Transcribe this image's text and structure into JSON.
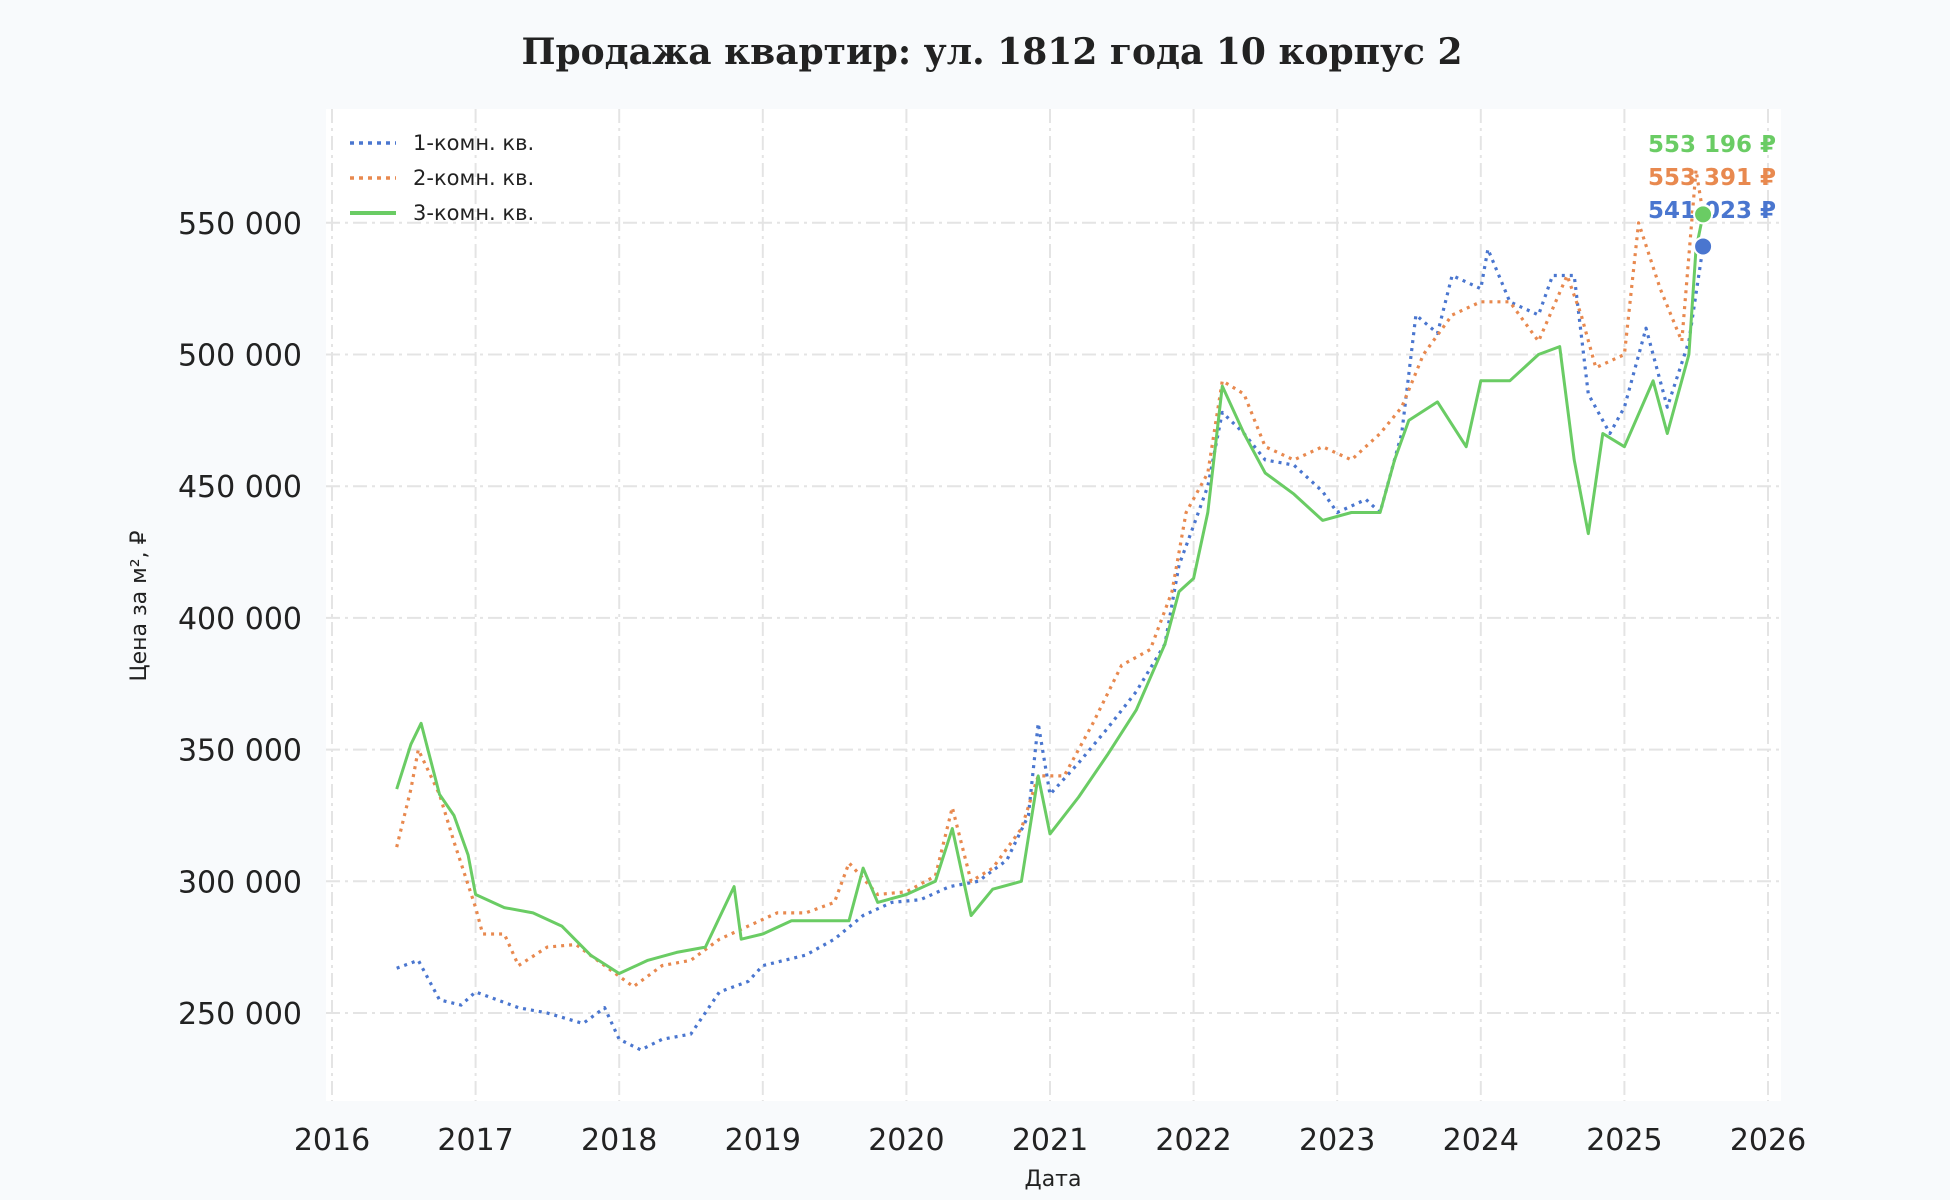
{
  "chart_data": {
    "type": "line",
    "title": "Продажа квартир: ул. 1812 года 10 корпус 2",
    "xlabel": "Дата",
    "ylabel": "Цена за м², ₽",
    "xlim": [
      "2016-01-01",
      "2026-01-01"
    ],
    "ylim": [
      215000,
      590000
    ],
    "x_ticks": [
      "2016",
      "2017",
      "2018",
      "2019",
      "2020",
      "2021",
      "2022",
      "2023",
      "2024",
      "2025",
      "2026"
    ],
    "y_ticks": [
      250000,
      300000,
      350000,
      400000,
      450000,
      500000,
      550000
    ],
    "y_tick_labels": [
      "250 000",
      "300 000",
      "350 000",
      "400 000",
      "450 000",
      "500 000",
      "550 000"
    ],
    "grid": true,
    "legend_position": "top-left",
    "series": [
      {
        "name": "1-комн. кв.",
        "color": "#4a76cf",
        "style": "dotted",
        "end_label": "541 023 ₽",
        "points": [
          [
            "2016-06-14",
            267000
          ],
          [
            "2016-08-08",
            270000
          ],
          [
            "2016-10-01",
            255000
          ],
          [
            "2016-11-25",
            253000
          ],
          [
            "2017-01-01",
            258000
          ],
          [
            "2017-04-20",
            252000
          ],
          [
            "2017-07-02",
            250000
          ],
          [
            "2017-10-01",
            246000
          ],
          [
            "2017-11-25",
            252000
          ],
          [
            "2018-01-01",
            240000
          ],
          [
            "2018-02-25",
            236000
          ],
          [
            "2018-04-20",
            240000
          ],
          [
            "2018-07-02",
            242000
          ],
          [
            "2018-09-13",
            258000
          ],
          [
            "2018-11-25",
            262000
          ],
          [
            "2019-01-01",
            268000
          ],
          [
            "2019-04-20",
            272000
          ],
          [
            "2019-07-02",
            278000
          ],
          [
            "2019-09-13",
            287000
          ],
          [
            "2019-11-25",
            292000
          ],
          [
            "2020-02-06",
            293000
          ],
          [
            "2020-04-20",
            298000
          ],
          [
            "2020-07-02",
            300000
          ],
          [
            "2020-09-13",
            308000
          ],
          [
            "2020-11-07",
            325000
          ],
          [
            "2020-12-02",
            360000
          ],
          [
            "2021-01-01",
            333000
          ],
          [
            "2021-03-15",
            345000
          ],
          [
            "2021-05-27",
            358000
          ],
          [
            "2021-08-08",
            372000
          ],
          [
            "2021-10-20",
            390000
          ],
          [
            "2021-11-25",
            420000
          ],
          [
            "2022-01-01",
            435000
          ],
          [
            "2022-02-06",
            450000
          ],
          [
            "2022-03-15",
            478000
          ],
          [
            "2022-05-09",
            470000
          ],
          [
            "2022-07-02",
            460000
          ],
          [
            "2022-09-13",
            458000
          ],
          [
            "2022-11-25",
            448000
          ],
          [
            "2023-01-01",
            440000
          ],
          [
            "2023-03-15",
            445000
          ],
          [
            "2023-04-20",
            440000
          ],
          [
            "2023-06-14",
            470000
          ],
          [
            "2023-07-20",
            515000
          ],
          [
            "2023-09-13",
            508000
          ],
          [
            "2023-10-20",
            530000
          ],
          [
            "2024-01-01",
            525000
          ],
          [
            "2024-01-19",
            540000
          ],
          [
            "2024-03-15",
            520000
          ],
          [
            "2024-05-27",
            515000
          ],
          [
            "2024-07-02",
            530000
          ],
          [
            "2024-08-26",
            530000
          ],
          [
            "2024-10-01",
            485000
          ],
          [
            "2024-11-25",
            470000
          ],
          [
            "2025-01-01",
            480000
          ],
          [
            "2025-02-25",
            510000
          ],
          [
            "2025-04-20",
            480000
          ],
          [
            "2025-06-14",
            505000
          ],
          [
            "2025-07-20",
            541023
          ]
        ]
      },
      {
        "name": "2-комн. кв.",
        "color": "#e8894f",
        "style": "dotted",
        "end_label": "553 391 ₽",
        "points": [
          [
            "2016-06-14",
            313000
          ],
          [
            "2016-07-20",
            335000
          ],
          [
            "2016-08-08",
            350000
          ],
          [
            "2016-10-01",
            333000
          ],
          [
            "2016-11-07",
            315000
          ],
          [
            "2017-01-01",
            290000
          ],
          [
            "2017-01-19",
            280000
          ],
          [
            "2017-03-15",
            280000
          ],
          [
            "2017-04-20",
            268000
          ],
          [
            "2017-07-02",
            275000
          ],
          [
            "2017-09-13",
            276000
          ],
          [
            "2017-11-25",
            268000
          ],
          [
            "2018-02-06",
            260000
          ],
          [
            "2018-04-20",
            268000
          ],
          [
            "2018-07-02",
            270000
          ],
          [
            "2018-09-13",
            278000
          ],
          [
            "2018-11-25",
            283000
          ],
          [
            "2019-02-06",
            288000
          ],
          [
            "2019-04-20",
            288000
          ],
          [
            "2019-07-02",
            292000
          ],
          [
            "2019-08-08",
            307000
          ],
          [
            "2019-10-20",
            295000
          ],
          [
            "2020-01-01",
            296000
          ],
          [
            "2020-03-15",
            302000
          ],
          [
            "2020-04-27",
            328000
          ],
          [
            "2020-06-14",
            300000
          ],
          [
            "2020-08-08",
            305000
          ],
          [
            "2020-10-20",
            320000
          ],
          [
            "2020-12-02",
            340000
          ],
          [
            "2021-02-06",
            340000
          ],
          [
            "2021-04-20",
            360000
          ],
          [
            "2021-07-02",
            382000
          ],
          [
            "2021-09-13",
            388000
          ],
          [
            "2021-11-07",
            410000
          ],
          [
            "2021-12-13",
            440000
          ],
          [
            "2022-02-06",
            455000
          ],
          [
            "2022-03-15",
            490000
          ],
          [
            "2022-05-09",
            485000
          ],
          [
            "2022-07-02",
            465000
          ],
          [
            "2022-09-13",
            460000
          ],
          [
            "2022-11-25",
            465000
          ],
          [
            "2023-02-06",
            460000
          ],
          [
            "2023-04-20",
            470000
          ],
          [
            "2023-06-14",
            480000
          ],
          [
            "2023-08-08",
            500000
          ],
          [
            "2023-10-20",
            515000
          ],
          [
            "2024-01-01",
            520000
          ],
          [
            "2024-03-15",
            520000
          ],
          [
            "2024-05-27",
            505000
          ],
          [
            "2024-08-08",
            530000
          ],
          [
            "2024-09-13",
            515000
          ],
          [
            "2024-10-20",
            495000
          ],
          [
            "2025-01-01",
            500000
          ],
          [
            "2025-02-06",
            550000
          ],
          [
            "2025-04-02",
            525000
          ],
          [
            "2025-05-27",
            505000
          ],
          [
            "2025-07-02",
            570000
          ],
          [
            "2025-07-20",
            553391
          ]
        ]
      },
      {
        "name": "3-комн. кв.",
        "color": "#6acc64",
        "style": "solid",
        "end_label": "553 196 ₽",
        "points": [
          [
            "2016-06-14",
            335000
          ],
          [
            "2016-07-20",
            352000
          ],
          [
            "2016-08-15",
            360000
          ],
          [
            "2016-10-01",
            333000
          ],
          [
            "2016-11-07",
            325000
          ],
          [
            "2016-12-13",
            310000
          ],
          [
            "2017-01-01",
            295000
          ],
          [
            "2017-03-15",
            290000
          ],
          [
            "2017-05-27",
            288000
          ],
          [
            "2017-08-08",
            283000
          ],
          [
            "2017-10-20",
            272000
          ],
          [
            "2018-01-01",
            265000
          ],
          [
            "2018-03-15",
            270000
          ],
          [
            "2018-05-27",
            273000
          ],
          [
            "2018-08-08",
            275000
          ],
          [
            "2018-10-20",
            298000
          ],
          [
            "2018-11-07",
            278000
          ],
          [
            "2019-01-01",
            280000
          ],
          [
            "2019-03-15",
            285000
          ],
          [
            "2019-05-27",
            285000
          ],
          [
            "2019-08-08",
            285000
          ],
          [
            "2019-09-13",
            305000
          ],
          [
            "2019-10-20",
            292000
          ],
          [
            "2020-01-01",
            295000
          ],
          [
            "2020-03-15",
            300000
          ],
          [
            "2020-04-27",
            320000
          ],
          [
            "2020-06-14",
            287000
          ],
          [
            "2020-08-08",
            297000
          ],
          [
            "2020-10-20",
            300000
          ],
          [
            "2020-12-02",
            340000
          ],
          [
            "2021-01-01",
            318000
          ],
          [
            "2021-03-15",
            332000
          ],
          [
            "2021-05-27",
            348000
          ],
          [
            "2021-08-08",
            365000
          ],
          [
            "2021-10-20",
            390000
          ],
          [
            "2021-11-25",
            410000
          ],
          [
            "2022-01-01",
            415000
          ],
          [
            "2022-02-06",
            440000
          ],
          [
            "2022-03-15",
            488000
          ],
          [
            "2022-05-09",
            470000
          ],
          [
            "2022-07-02",
            455000
          ],
          [
            "2022-09-13",
            447000
          ],
          [
            "2022-11-25",
            437000
          ],
          [
            "2023-02-06",
            440000
          ],
          [
            "2023-04-20",
            440000
          ],
          [
            "2023-05-27",
            460000
          ],
          [
            "2023-07-02",
            475000
          ],
          [
            "2023-09-13",
            482000
          ],
          [
            "2023-11-25",
            465000
          ],
          [
            "2024-01-01",
            490000
          ],
          [
            "2024-03-15",
            490000
          ],
          [
            "2024-05-27",
            500000
          ],
          [
            "2024-07-20",
            503000
          ],
          [
            "2024-08-26",
            460000
          ],
          [
            "2024-10-01",
            432000
          ],
          [
            "2024-11-07",
            470000
          ],
          [
            "2025-01-01",
            465000
          ],
          [
            "2025-03-15",
            490000
          ],
          [
            "2025-04-20",
            470000
          ],
          [
            "2025-06-14",
            500000
          ],
          [
            "2025-07-02",
            540000
          ],
          [
            "2025-07-20",
            553196
          ]
        ]
      }
    ]
  }
}
